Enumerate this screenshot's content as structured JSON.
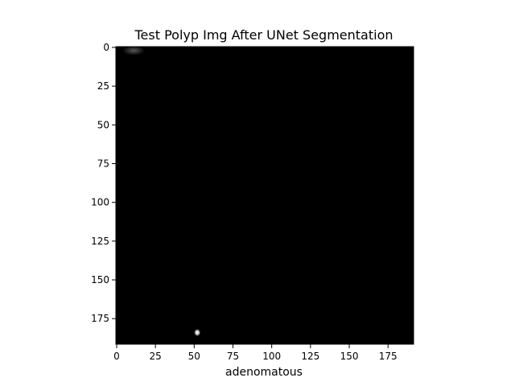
{
  "chart_data": {
    "type": "heatmap",
    "title": "Test Polyp Img After UNet Segmentation",
    "xlabel": "adenomatous",
    "ylabel": "",
    "image_size": [
      192,
      192
    ],
    "xlim": [
      -0.5,
      191.5
    ],
    "ylim": [
      191.5,
      -0.5
    ],
    "x_ticks": [
      0,
      25,
      50,
      75,
      100,
      125,
      150,
      175
    ],
    "y_ticks": [
      0,
      25,
      50,
      75,
      100,
      125,
      150,
      175
    ],
    "colormap": "gray",
    "background_value": 0,
    "bright_regions": [
      {
        "x": 52,
        "y": 184,
        "value": 1.0
      },
      {
        "x": 11,
        "y": 2,
        "value": 0.2
      }
    ],
    "colors": {
      "background": "#000000",
      "foreground": "#ffffff",
      "axis": "#000000",
      "page": "#ffffff"
    }
  }
}
